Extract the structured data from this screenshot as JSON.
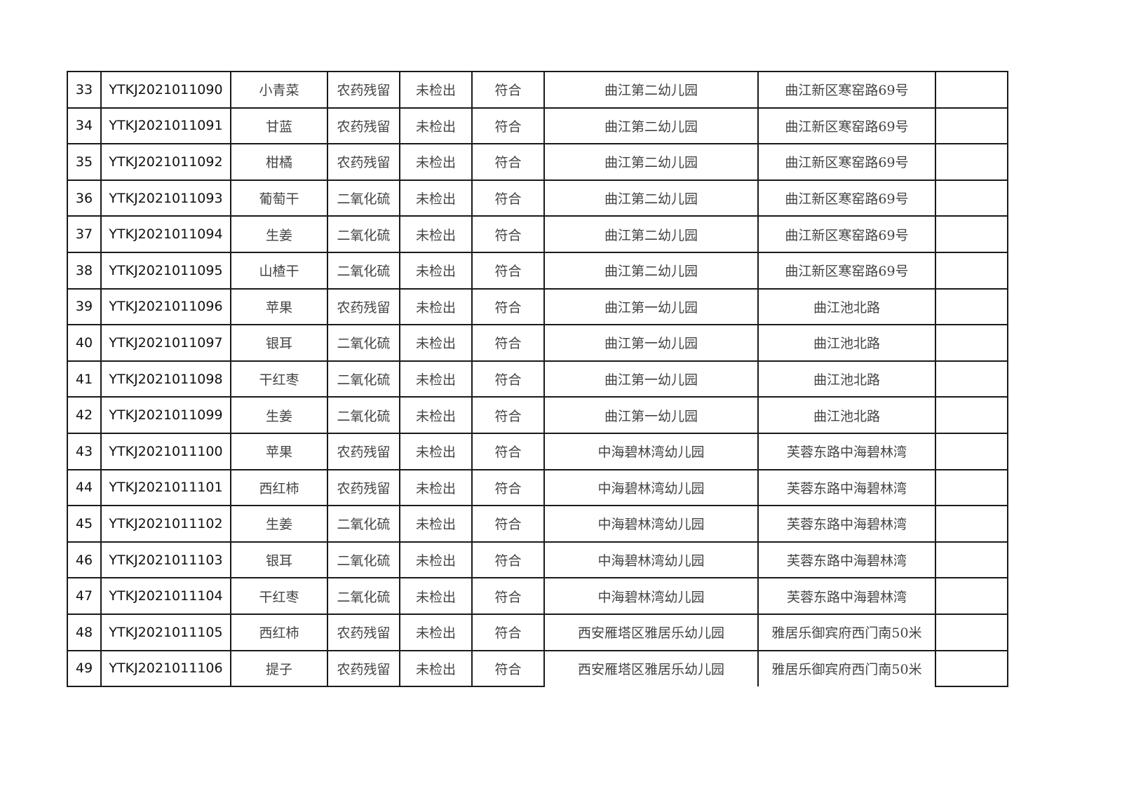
{
  "rows": [
    [
      "33",
      "YTKJ2021011090",
      "小青菜",
      "农药残留",
      "未检出",
      "符合",
      "曲江第二幼儿园",
      "曲江新区寒窑路69号",
      ""
    ],
    [
      "34",
      "YTKJ2021011091",
      "甘蓝",
      "农药残留",
      "未检出",
      "符合",
      "曲江第二幼儿园",
      "曲江新区寒窑路69号",
      ""
    ],
    [
      "35",
      "YTKJ2021011092",
      "柑橘",
      "农药残留",
      "未检出",
      "符合",
      "曲江第二幼儿园",
      "曲江新区寒窑路69号",
      ""
    ],
    [
      "36",
      "YTKJ2021011093",
      "葡萄干",
      "二氧化硫",
      "未检出",
      "符合",
      "曲江第二幼儿园",
      "曲江新区寒窑路69号",
      ""
    ],
    [
      "37",
      "YTKJ2021011094",
      "生姜",
      "二氧化硫",
      "未检出",
      "符合",
      "曲江第二幼儿园",
      "曲江新区寒窑路69号",
      ""
    ],
    [
      "38",
      "YTKJ2021011095",
      "山楂干",
      "二氧化硫",
      "未检出",
      "符合",
      "曲江第二幼儿园",
      "曲江新区寒窑路69号",
      ""
    ],
    [
      "39",
      "YTKJ2021011096",
      "苹果",
      "农药残留",
      "未检出",
      "符合",
      "曲江第一幼儿园",
      "曲江池北路",
      ""
    ],
    [
      "40",
      "YTKJ2021011097",
      "银耳",
      "二氧化硫",
      "未检出",
      "符合",
      "曲江第一幼儿园",
      "曲江池北路",
      ""
    ],
    [
      "41",
      "YTKJ2021011098",
      "干红枣",
      "二氧化硫",
      "未检出",
      "符合",
      "曲江第一幼儿园",
      "曲江池北路",
      ""
    ],
    [
      "42",
      "YTKJ2021011099",
      "生姜",
      "二氧化硫",
      "未检出",
      "符合",
      "曲江第一幼儿园",
      "曲江池北路",
      ""
    ],
    [
      "43",
      "YTKJ2021011100",
      "苹果",
      "农药残留",
      "未检出",
      "符合",
      "中海碧林湾幼儿园",
      "芙蓉东路中海碧林湾",
      ""
    ],
    [
      "44",
      "YTKJ2021011101",
      "西红柿",
      "农药残留",
      "未检出",
      "符合",
      "中海碧林湾幼儿园",
      "芙蓉东路中海碧林湾",
      ""
    ],
    [
      "45",
      "YTKJ2021011102",
      "生姜",
      "二氧化硫",
      "未检出",
      "符合",
      "中海碧林湾幼儿园",
      "芙蓉东路中海碧林湾",
      ""
    ],
    [
      "46",
      "YTKJ2021011103",
      "银耳",
      "二氧化硫",
      "未检出",
      "符合",
      "中海碧林湾幼儿园",
      "芙蓉东路中海碧林湾",
      ""
    ],
    [
      "47",
      "YTKJ2021011104",
      "干红枣",
      "二氧化硫",
      "未检出",
      "符合",
      "中海碧林湾幼儿园",
      "芙蓉东路中海碧林湾",
      ""
    ],
    [
      "48",
      "YTKJ2021011105",
      "西红柿",
      "农药残留",
      "未检出",
      "符合",
      "西安雁塔区雅居乐幼儿园",
      "雅居乐御宾府西门南50米",
      ""
    ],
    [
      "49",
      "YTKJ2021011106",
      "提子",
      "农药残留",
      "未检出",
      "符合",
      "西安雁塔区雅居乐幼儿园",
      "雅居乐御宾府西门南50米",
      ""
    ]
  ]
}
